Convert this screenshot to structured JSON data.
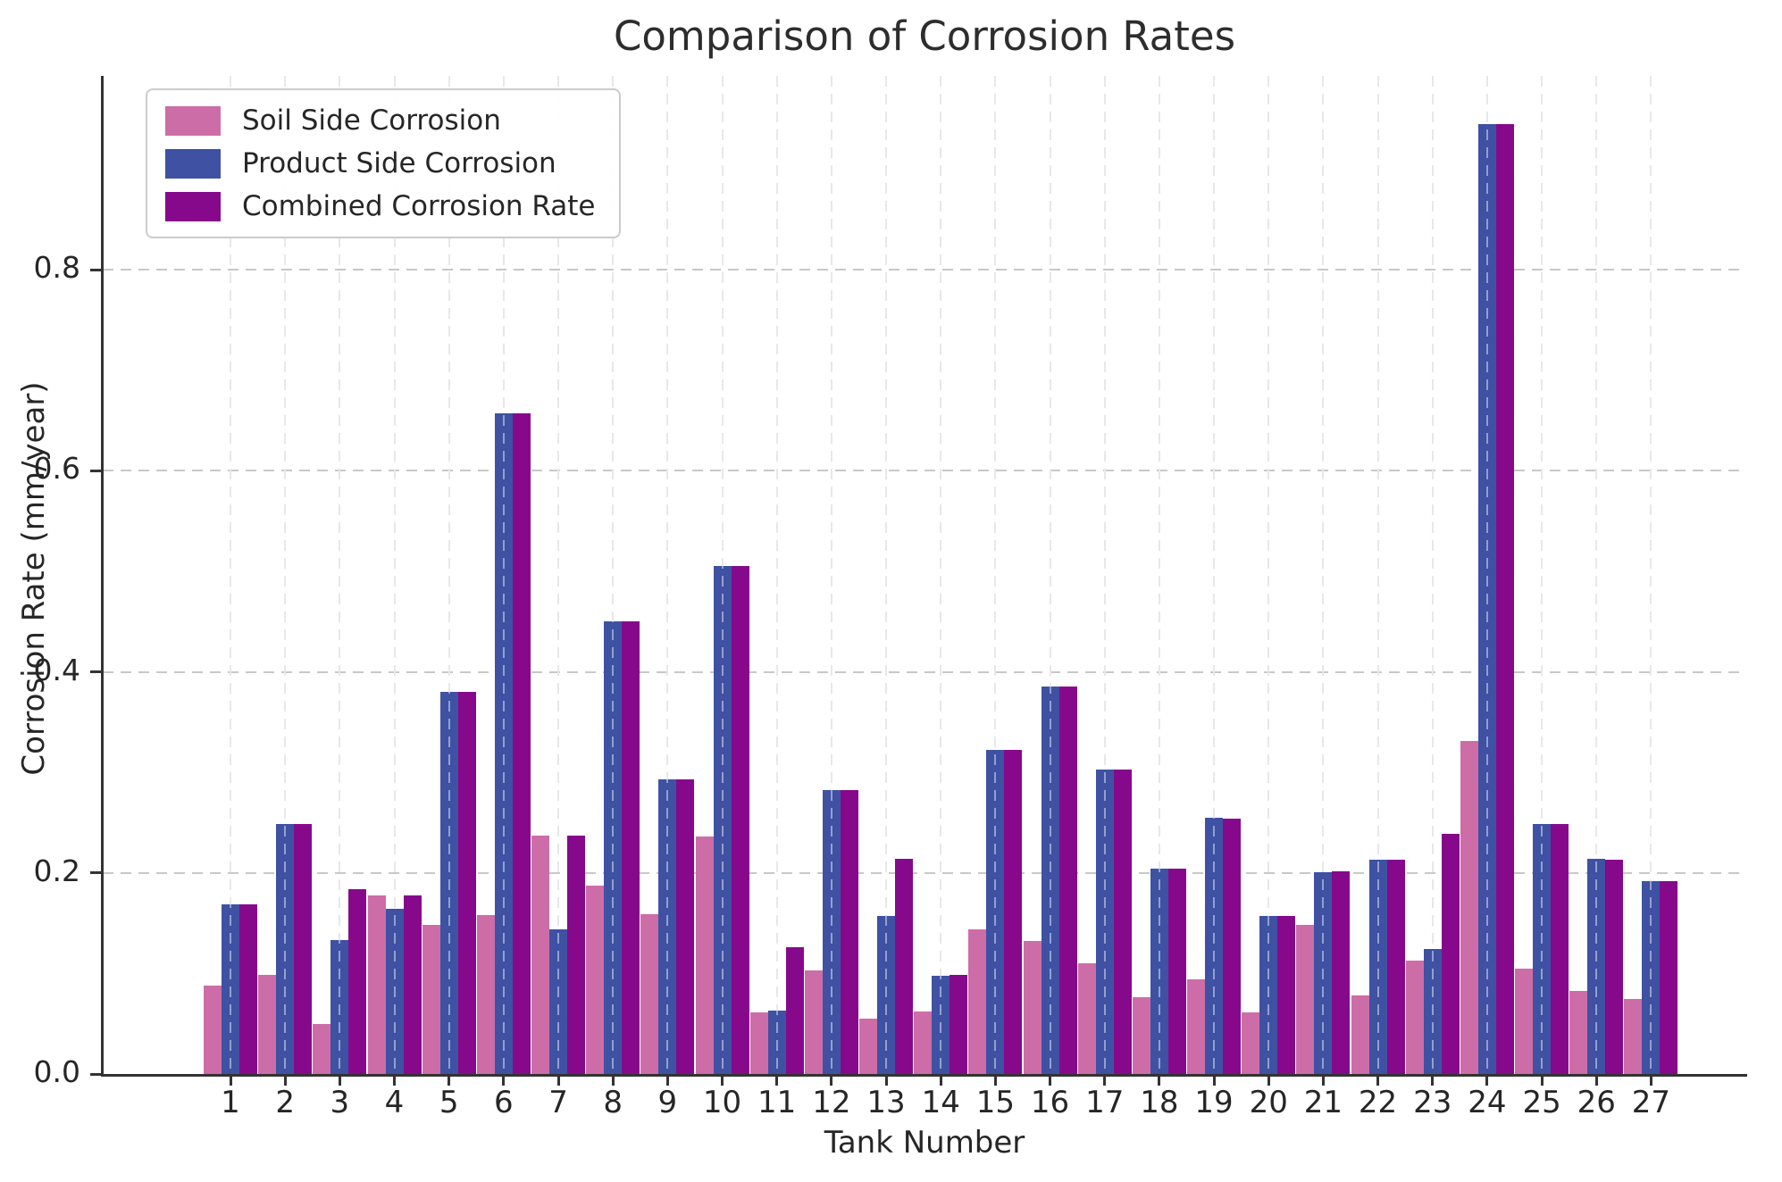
{
  "title": "Comparison of Corrosion Rates",
  "axes": {
    "xlabel": "Tank Number",
    "ylabel": "Corrosion Rate (mm/year)"
  },
  "colors": {
    "soil": "#cd6da7",
    "product": "#3e51a2",
    "combined": "#86098c",
    "grid": "#c8c8c8",
    "text": "#262626",
    "spine": "#333333"
  },
  "legend": {
    "entries": [
      "Soil Side Corrosion",
      "Product Side Corrosion",
      "Combined Corrosion Rate"
    ]
  },
  "chart_data": {
    "type": "bar",
    "title": "Comparison of Corrosion Rates",
    "xlabel": "Tank Number",
    "ylabel": "Corrosion Rate (mm/year)",
    "categories": [
      1,
      2,
      3,
      4,
      5,
      6,
      7,
      8,
      9,
      10,
      11,
      12,
      13,
      14,
      15,
      16,
      17,
      18,
      19,
      20,
      21,
      22,
      23,
      24,
      25,
      26,
      27
    ],
    "series": [
      {
        "name": "Soil Side Corrosion",
        "color": "#cd6da7",
        "values": [
          0.088,
          0.099,
          0.05,
          0.178,
          0.148,
          0.158,
          0.237,
          0.187,
          0.159,
          0.236,
          0.061,
          0.103,
          0.055,
          0.062,
          0.144,
          0.132,
          0.11,
          0.076,
          0.094,
          0.061,
          0.148,
          0.078,
          0.113,
          0.331,
          0.105,
          0.083,
          0.075
        ]
      },
      {
        "name": "Product Side Corrosion",
        "color": "#3e51a2",
        "values": [
          0.169,
          0.249,
          0.133,
          0.164,
          0.38,
          0.657,
          0.144,
          0.45,
          0.293,
          0.505,
          0.063,
          0.282,
          0.157,
          0.098,
          0.322,
          0.385,
          0.303,
          0.204,
          0.255,
          0.157,
          0.201,
          0.213,
          0.124,
          0.945,
          0.249,
          0.214,
          0.192
        ]
      },
      {
        "name": "Combined Corrosion Rate",
        "color": "#86098c",
        "values": [
          0.169,
          0.249,
          0.184,
          0.178,
          0.38,
          0.657,
          0.237,
          0.45,
          0.293,
          0.505,
          0.126,
          0.282,
          0.214,
          0.099,
          0.322,
          0.385,
          0.303,
          0.204,
          0.254,
          0.157,
          0.202,
          0.213,
          0.239,
          0.945,
          0.249,
          0.213,
          0.192
        ]
      }
    ],
    "ylim": [
      0.0,
      0.993
    ],
    "yticks": [
      0.0,
      0.2,
      0.4,
      0.6,
      0.8
    ],
    "grid": true,
    "grid_style": "dashed",
    "legend_position": "upper left"
  }
}
